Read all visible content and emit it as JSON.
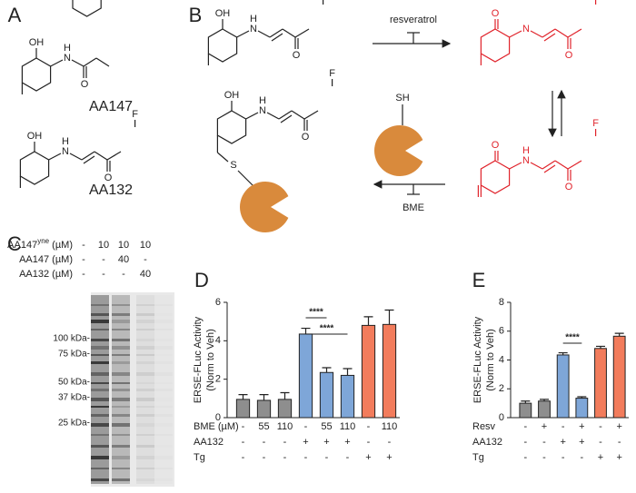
{
  "panel_a": {
    "letter": "A",
    "compounds": [
      {
        "name": "AA147",
        "atoms": [
          "OH",
          "H",
          "N",
          "O"
        ]
      },
      {
        "name": "AA132",
        "atoms": [
          "OH",
          "H",
          "N",
          "O",
          "F"
        ]
      }
    ]
  },
  "panel_b": {
    "letter": "B",
    "reagent_top": "resveratrol",
    "reagent_bottom": "BME",
    "thiol": "SH",
    "structures": [
      {
        "atoms": [
          "OH",
          "H",
          "N",
          "O",
          "F"
        ]
      },
      {
        "atoms": [
          "O",
          "N",
          "O",
          "F"
        ]
      },
      {
        "atoms": [
          "O",
          "H",
          "N",
          "O",
          "F"
        ]
      },
      {
        "atoms": [
          "OH",
          "H",
          "N",
          "O",
          "F",
          "S"
        ]
      }
    ]
  },
  "panel_c": {
    "letter": "C",
    "rows": [
      {
        "label": "AA147",
        "sup": "yne",
        "unit": " (µM)",
        "values": [
          "-",
          "10",
          "10",
          "10"
        ]
      },
      {
        "label": "AA147 (µM)",
        "values": [
          "-",
          "-",
          "40",
          "-"
        ]
      },
      {
        "label": "AA132 (µM)",
        "values": [
          "-",
          "-",
          "-",
          "40"
        ]
      }
    ],
    "markers": [
      "100 kDa-",
      "75 kDa-",
      "50 kDa-",
      "37 kDa-",
      "25 kDa-"
    ]
  },
  "chart_data": [
    {
      "letter": "D",
      "type": "bar",
      "ylabel": [
        "ERSE-FLuc Activity",
        "(Norm to Veh)"
      ],
      "values": [
        0.95,
        0.9,
        0.95,
        4.35,
        2.35,
        2.2,
        4.8,
        4.85
      ],
      "errors": [
        0.25,
        0.3,
        0.35,
        0.3,
        0.25,
        0.35,
        0.45,
        0.75
      ],
      "colors": [
        "#8e8e8e",
        "#8e8e8e",
        "#8e8e8e",
        "#7ea6d8",
        "#7ea6d8",
        "#7ea6d8",
        "#f27c5c",
        "#f27c5c"
      ],
      "ylim": [
        0,
        6
      ],
      "yticks": [
        0,
        2,
        4,
        6
      ],
      "conditions": [
        {
          "name": "BME (µM)",
          "values": [
            "-",
            "55",
            "110",
            "-",
            "55",
            "110",
            "-",
            "110"
          ]
        },
        {
          "name": "AA132",
          "values": [
            "-",
            "-",
            "-",
            "+",
            "+",
            "+",
            "-",
            "-"
          ]
        },
        {
          "name": "Tg",
          "values": [
            "-",
            "-",
            "-",
            "-",
            "-",
            "-",
            "+",
            "+"
          ]
        }
      ],
      "significance": [
        "****",
        "****"
      ]
    },
    {
      "letter": "E",
      "type": "bar",
      "ylabel": [
        "ERSE-FLuc Activity",
        "(Norm to Veh)"
      ],
      "values": [
        1.0,
        1.15,
        4.35,
        1.35,
        4.8,
        5.65
      ],
      "errors": [
        0.15,
        0.12,
        0.15,
        0.1,
        0.15,
        0.2
      ],
      "colors": [
        "#8e8e8e",
        "#8e8e8e",
        "#7ea6d8",
        "#7ea6d8",
        "#f27c5c",
        "#f27c5c"
      ],
      "ylim": [
        0,
        8
      ],
      "yticks": [
        0,
        2,
        4,
        6,
        8
      ],
      "conditions": [
        {
          "name": "Resv",
          "values": [
            "-",
            "+",
            "-",
            "+",
            "-",
            "+"
          ]
        },
        {
          "name": "AA132",
          "values": [
            "-",
            "-",
            "+",
            "+",
            "-",
            "-"
          ]
        },
        {
          "name": "Tg",
          "values": [
            "-",
            "-",
            "-",
            "-",
            "+",
            "+"
          ]
        }
      ],
      "significance": [
        "****"
      ]
    }
  ]
}
